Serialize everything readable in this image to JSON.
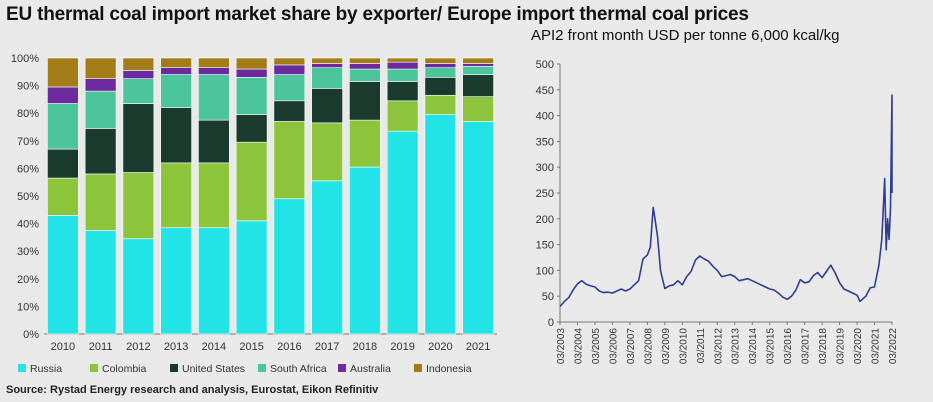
{
  "title": "EU thermal coal import market share by exporter/ Europe import thermal coal prices",
  "source": "Source: Rystad Energy research and analysis,  Eurostat, Eikon  Refinitiv",
  "chart_data": [
    {
      "type": "bar",
      "stacked": true,
      "categories": [
        "2010",
        "2011",
        "2012",
        "2013",
        "2014",
        "2015",
        "2016",
        "2017",
        "2018",
        "2019",
        "2020",
        "2021"
      ],
      "ylim": [
        0,
        100
      ],
      "yticks": [
        "0%",
        "10%",
        "20%",
        "30%",
        "40%",
        "50%",
        "60%",
        "70%",
        "80%",
        "90%",
        "100%"
      ],
      "series": [
        {
          "name": "Russia",
          "color": "#22e3e6",
          "values": [
            43,
            37.5,
            34.5,
            38.5,
            38.5,
            41,
            49,
            55.5,
            60.5,
            73.5,
            79.5,
            77
          ]
        },
        {
          "name": "Colombia",
          "color": "#8cc43c",
          "values": [
            13.5,
            20.5,
            24,
            23.5,
            23.5,
            28.5,
            28,
            21,
            17,
            11,
            7,
            9
          ]
        },
        {
          "name": "United States",
          "color": "#1a3a2e",
          "values": [
            10.5,
            16.5,
            25,
            20,
            15.5,
            10,
            7.5,
            12.5,
            14,
            7,
            6.5,
            8
          ]
        },
        {
          "name": "South Africa",
          "color": "#4cc49c",
          "values": [
            16.5,
            13.5,
            9,
            12,
            16.5,
            13.5,
            9.5,
            7.5,
            4.5,
            4.5,
            3.5,
            3
          ]
        },
        {
          "name": "Australia",
          "color": "#6b2a9e",
          "values": [
            6,
            4.5,
            3,
            2.5,
            2.5,
            3,
            3.5,
            1.5,
            2,
            2.5,
            1.5,
            1
          ]
        },
        {
          "name": "Indonesia",
          "color": "#a27c16",
          "values": [
            10.5,
            7.5,
            4.5,
            3.5,
            3.5,
            4,
            2.5,
            2,
            2,
            1.5,
            2,
            2
          ]
        }
      ],
      "legend_position": "bottom"
    },
    {
      "type": "line",
      "title": "API2 front month USD per tonne 6,000 kcal/kg",
      "ylim": [
        0,
        500
      ],
      "yticks": [
        0,
        50,
        100,
        150,
        200,
        250,
        300,
        350,
        400,
        450,
        500
      ],
      "xticks": [
        "03/2003",
        "03/2004",
        "03/2005",
        "03/2006",
        "03/2007",
        "03/2008",
        "03/2009",
        "03/2010",
        "03/2011",
        "03/2012",
        "03/2013",
        "03/2014",
        "03/2015",
        "03/2016",
        "03/2017",
        "03/2018",
        "03/2019",
        "03/2020",
        "03/2021",
        "03/2022"
      ],
      "series": [
        {
          "color": "#2e3f8f",
          "points": [
            [
              "2003-03",
              30
            ],
            [
              "2003-06",
              40
            ],
            [
              "2003-09",
              47
            ],
            [
              "2003-12",
              62
            ],
            [
              "2004-03",
              74
            ],
            [
              "2004-06",
              80
            ],
            [
              "2004-09",
              73
            ],
            [
              "2004-12",
              70
            ],
            [
              "2005-03",
              68
            ],
            [
              "2005-06",
              60
            ],
            [
              "2005-09",
              57
            ],
            [
              "2005-12",
              58
            ],
            [
              "2006-03",
              56
            ],
            [
              "2006-06",
              60
            ],
            [
              "2006-09",
              64
            ],
            [
              "2006-12",
              60
            ],
            [
              "2007-03",
              64
            ],
            [
              "2007-06",
              72
            ],
            [
              "2007-09",
              80
            ],
            [
              "2007-12",
              122
            ],
            [
              "2008-03",
              130
            ],
            [
              "2008-05",
              145
            ],
            [
              "2008-07",
              222
            ],
            [
              "2008-08",
              205
            ],
            [
              "2008-10",
              165
            ],
            [
              "2008-12",
              100
            ],
            [
              "2009-03",
              65
            ],
            [
              "2009-06",
              70
            ],
            [
              "2009-09",
              72
            ],
            [
              "2009-12",
              80
            ],
            [
              "2010-03",
              72
            ],
            [
              "2010-06",
              88
            ],
            [
              "2010-09",
              98
            ],
            [
              "2010-12",
              120
            ],
            [
              "2011-03",
              128
            ],
            [
              "2011-06",
              122
            ],
            [
              "2011-09",
              118
            ],
            [
              "2011-12",
              108
            ],
            [
              "2012-03",
              100
            ],
            [
              "2012-06",
              88
            ],
            [
              "2012-09",
              90
            ],
            [
              "2012-12",
              92
            ],
            [
              "2013-03",
              88
            ],
            [
              "2013-06",
              80
            ],
            [
              "2013-09",
              82
            ],
            [
              "2013-12",
              84
            ],
            [
              "2014-03",
              80
            ],
            [
              "2014-06",
              76
            ],
            [
              "2014-09",
              72
            ],
            [
              "2014-12",
              68
            ],
            [
              "2015-03",
              64
            ],
            [
              "2015-06",
              62
            ],
            [
              "2015-09",
              56
            ],
            [
              "2015-12",
              48
            ],
            [
              "2016-03",
              44
            ],
            [
              "2016-06",
              50
            ],
            [
              "2016-09",
              62
            ],
            [
              "2016-12",
              82
            ],
            [
              "2017-03",
              76
            ],
            [
              "2017-06",
              78
            ],
            [
              "2017-09",
              90
            ],
            [
              "2017-12",
              96
            ],
            [
              "2018-03",
              86
            ],
            [
              "2018-06",
              98
            ],
            [
              "2018-09",
              110
            ],
            [
              "2018-12",
              95
            ],
            [
              "2019-03",
              76
            ],
            [
              "2019-06",
              64
            ],
            [
              "2019-09",
              60
            ],
            [
              "2019-12",
              56
            ],
            [
              "2020-03",
              52
            ],
            [
              "2020-05",
              40
            ],
            [
              "2020-09",
              50
            ],
            [
              "2020-12",
              66
            ],
            [
              "2021-03",
              68
            ],
            [
              "2021-06",
              110
            ],
            [
              "2021-08",
              160
            ],
            [
              "2021-10",
              278
            ],
            [
              "2021-11",
              140
            ],
            [
              "2021-12",
              200
            ],
            [
              "2022-01",
              160
            ],
            [
              "2022-02",
              220
            ],
            [
              "2022-03",
              440
            ],
            [
              "2022-03",
              250
            ]
          ]
        }
      ],
      "grid": false
    }
  ]
}
